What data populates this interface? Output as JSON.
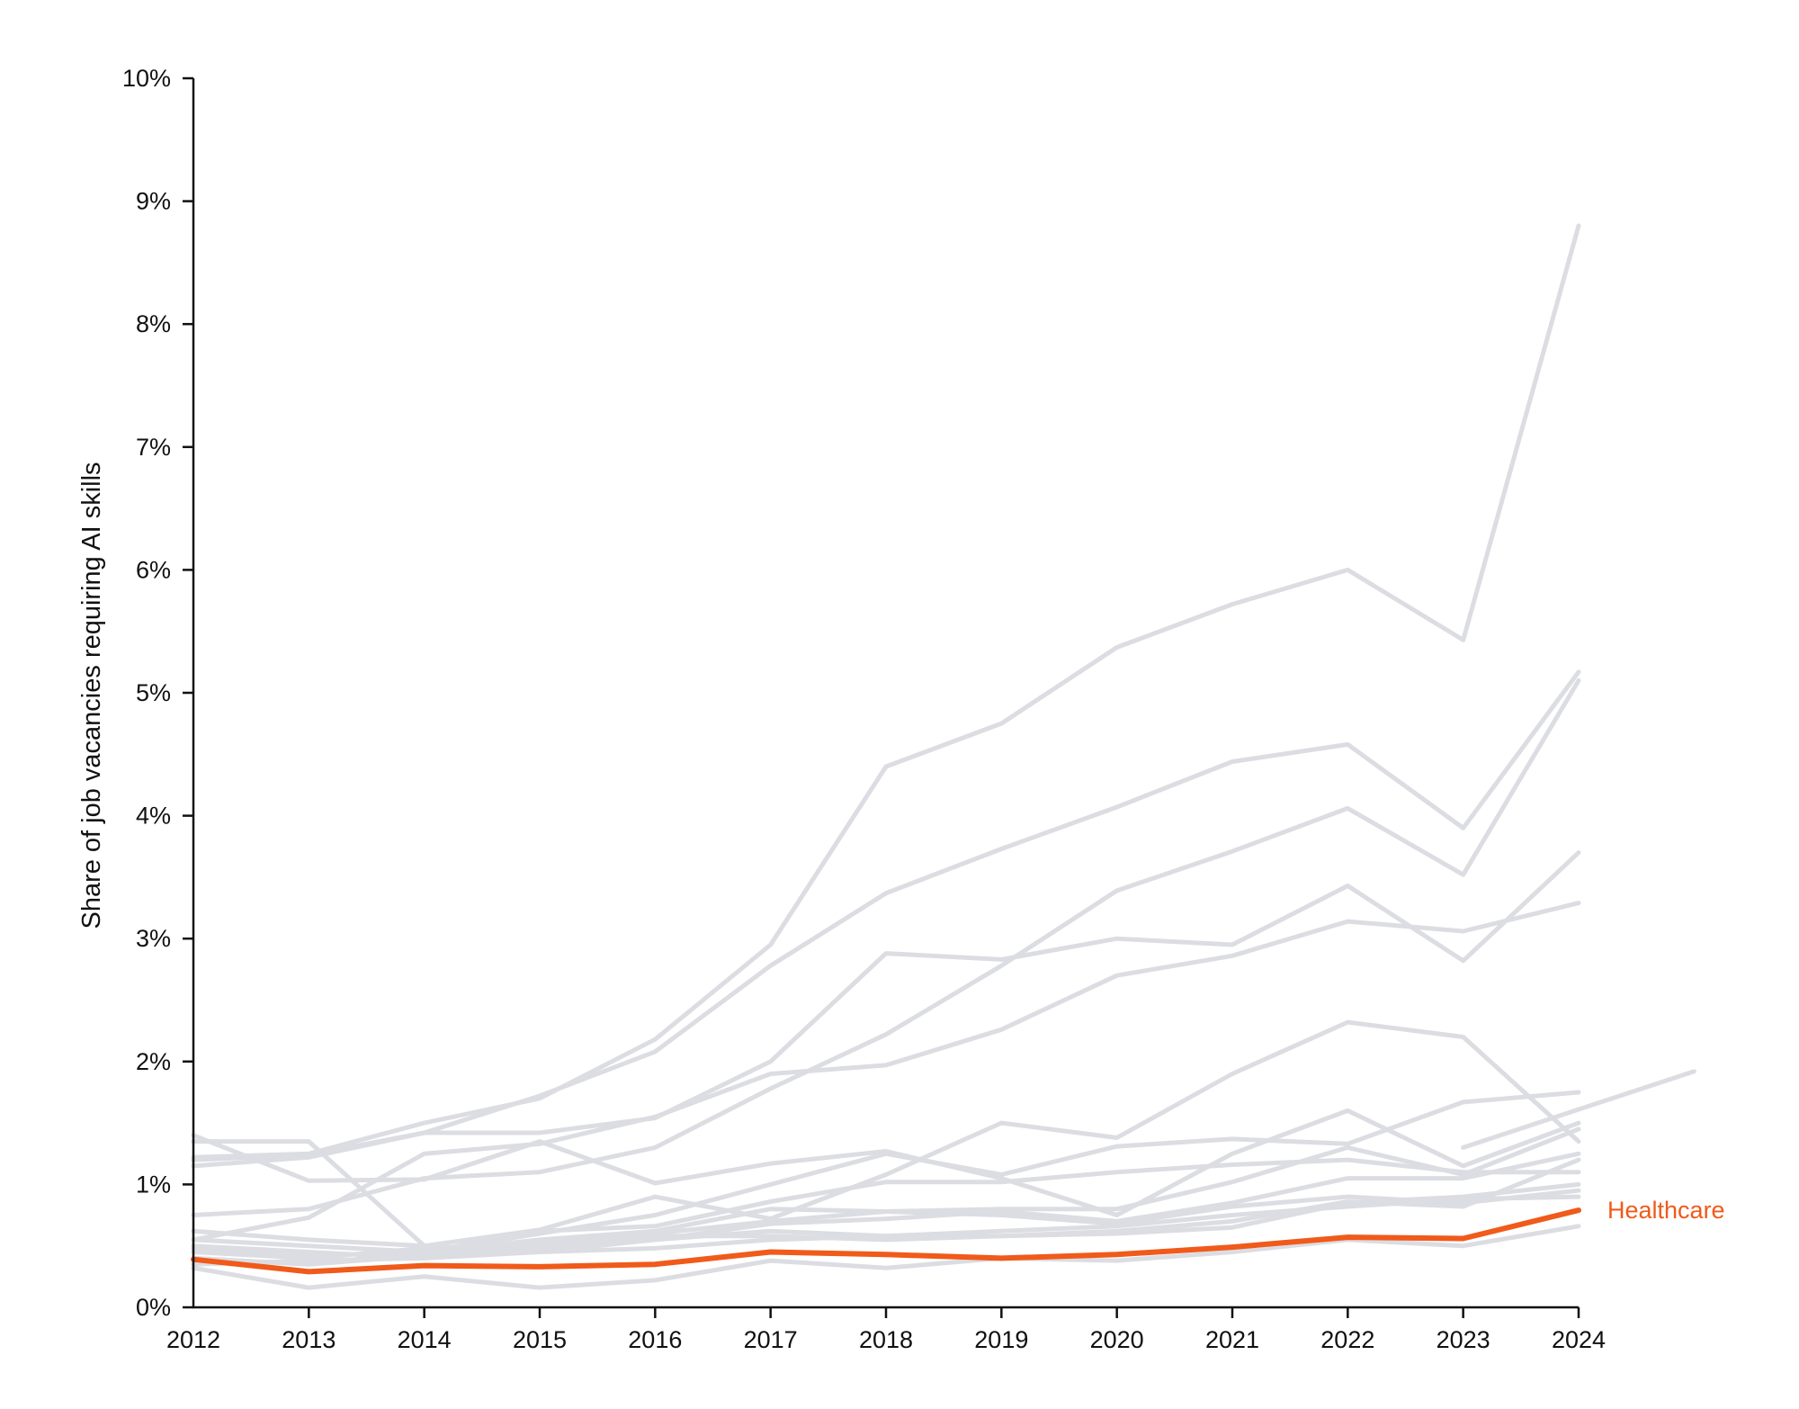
{
  "chart_data": {
    "type": "line",
    "title": "",
    "xlabel": "",
    "ylabel": "Share of job vacancies requiring AI skills",
    "x": [
      "2012",
      "2013",
      "2014",
      "2015",
      "2016",
      "2017",
      "2018",
      "2019",
      "2020",
      "2021",
      "2022",
      "2023",
      "2024"
    ],
    "y_ticks": [
      "0%",
      "1%",
      "2%",
      "3%",
      "4%",
      "5%",
      "6%",
      "7%",
      "8%",
      "9%",
      "10%"
    ],
    "ylim": [
      0,
      10
    ],
    "grid": false,
    "colors": {
      "background_series": "#dcdde2",
      "highlight": "#f05a1a",
      "axis": "#111111"
    },
    "highlight_series": {
      "name": "Healthcare",
      "values": [
        0.39,
        0.29,
        0.34,
        0.33,
        0.35,
        0.45,
        0.43,
        0.4,
        0.43,
        0.49,
        0.57,
        0.56,
        0.79
      ]
    },
    "series": [
      {
        "values": [
          1.22,
          1.25,
          1.5,
          1.7,
          2.18,
          2.95,
          4.4,
          4.75,
          5.37,
          5.72,
          6.0,
          5.43,
          8.8
        ]
      },
      {
        "values": [
          1.2,
          1.24,
          1.42,
          1.72,
          2.08,
          2.78,
          3.37,
          3.73,
          4.07,
          4.44,
          4.58,
          3.9,
          5.17
        ]
      },
      {
        "values": [
          1.15,
          1.22,
          1.42,
          1.42,
          1.54,
          2.0,
          2.88,
          2.83,
          3.0,
          2.95,
          3.43,
          2.82,
          3.7
        ]
      },
      {
        "values": [
          0.75,
          0.8,
          1.05,
          1.1,
          1.3,
          1.78,
          2.22,
          2.78,
          3.39,
          3.71,
          4.06,
          3.52,
          5.1
        ]
      },
      {
        "values": [
          0.55,
          0.73,
          1.25,
          1.33,
          1.55,
          1.9,
          1.97,
          2.26,
          2.7,
          2.86,
          3.14,
          3.06,
          3.29
        ]
      },
      {
        "values": [
          1.4,
          1.03,
          1.04,
          1.35,
          1.01,
          1.17,
          1.27,
          1.05,
          0.75,
          1.25,
          1.6,
          1.15,
          1.5
        ]
      },
      {
        "values": [
          0.62,
          0.55,
          0.5,
          0.63,
          0.9,
          0.72,
          1.08,
          1.5,
          1.38,
          1.9,
          2.32,
          2.2,
          1.35
        ]
      },
      {
        "values": [
          0.48,
          0.42,
          0.45,
          0.6,
          0.75,
          1.0,
          1.25,
          1.08,
          1.31,
          1.37,
          1.33,
          1.67,
          1.75
        ]
      },
      {
        "values": [
          0.45,
          0.4,
          0.48,
          0.52,
          0.6,
          0.7,
          0.78,
          0.8,
          0.8,
          1.02,
          1.3,
          1.08,
          1.45
        ]
      },
      {
        "values": [
          0.5,
          0.45,
          0.4,
          0.45,
          0.55,
          0.68,
          0.72,
          0.78,
          0.7,
          0.85,
          1.05,
          1.05,
          1.25
        ]
      },
      {
        "values": [
          0.4,
          0.35,
          0.45,
          0.55,
          0.62,
          0.8,
          0.78,
          0.75,
          0.68,
          0.82,
          0.9,
          0.85,
          0.95
        ]
      },
      {
        "values": [
          0.35,
          0.38,
          0.4,
          0.48,
          0.58,
          0.58,
          0.55,
          0.58,
          0.62,
          0.7,
          0.86,
          0.82,
          1.2
        ]
      },
      {
        "values": [
          0.55,
          0.5,
          0.45,
          0.62,
          0.66,
          0.86,
          1.02,
          1.02,
          1.1,
          1.16,
          1.2,
          1.1,
          1.1
        ]
      },
      {
        "values": [
          0.4,
          0.35,
          0.42,
          0.5,
          0.55,
          0.62,
          0.58,
          0.62,
          0.66,
          0.75,
          0.82,
          0.88,
          0.9
        ]
      },
      {
        "values": [
          0.32,
          0.16,
          0.25,
          0.16,
          0.22,
          0.38,
          0.32,
          0.4,
          0.38,
          0.45,
          0.55,
          0.5,
          0.66
        ]
      },
      {
        "values": [
          1.35,
          1.35,
          0.5,
          0.45,
          0.48,
          0.55,
          0.58,
          0.58,
          0.6,
          0.65,
          0.85,
          0.9,
          1.0
        ]
      }
    ],
    "extra_segment": {
      "from": [
        2023.0,
        1.3
      ],
      "to": [
        2025.0,
        1.92
      ]
    }
  }
}
